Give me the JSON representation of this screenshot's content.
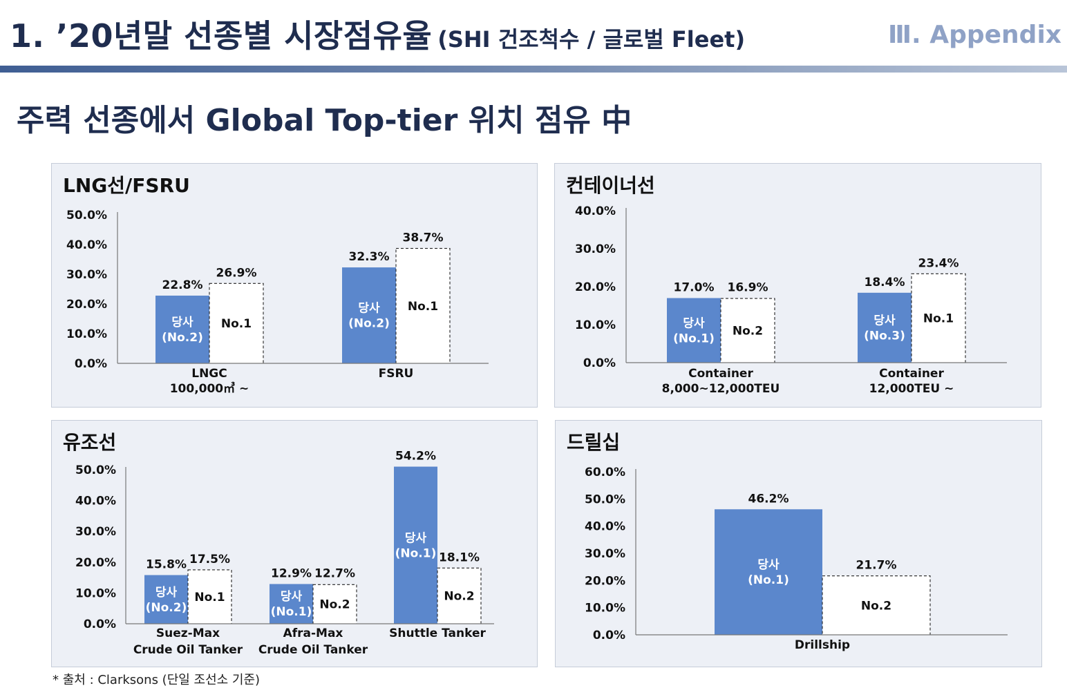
{
  "header": {
    "title": "1. ’20년말 선종별 시장점유율",
    "title_sub": "(SHI 건조척수 / 글로벌 Fleet)",
    "section": "Ⅲ. Appendix"
  },
  "subtitle": "주력 선종에서 Global Top-tier 위치 점유 中",
  "footnote": "* 출처 : Clarksons (단일 조선소 기준)",
  "colors": {
    "own_bar": "#5b87cc",
    "own_bar_text": "#ffffff",
    "navy": "#1f2d4f",
    "panel_bg": "#edf0f6"
  },
  "chart_data": [
    {
      "id": "lng",
      "type": "bar",
      "title": "LNG선/FSRU",
      "y_ticks": [
        "0.0%",
        "10.0%",
        "20.0%",
        "30.0%",
        "40.0%",
        "50.0%"
      ],
      "ylim": [
        0,
        50
      ],
      "categories": [
        [
          "LNGC",
          "100,000㎥ ~"
        ],
        [
          "FSRU"
        ]
      ],
      "series": [
        {
          "role": "own",
          "values": [
            22.8,
            32.3
          ],
          "value_labels": [
            "22.8%",
            "32.3%"
          ],
          "bar_labels": [
            [
              "당사",
              "(No.2)"
            ],
            [
              "당사",
              "(No.2)"
            ]
          ]
        },
        {
          "role": "top",
          "values": [
            26.9,
            38.7
          ],
          "value_labels": [
            "26.9%",
            "38.7%"
          ],
          "bar_labels": [
            [
              "No.1"
            ],
            [
              "No.1"
            ]
          ]
        }
      ]
    },
    {
      "id": "container",
      "type": "bar",
      "title": "컨테이너선",
      "y_ticks": [
        "0.0%",
        "10.0%",
        "20.0%",
        "30.0%",
        "40.0%"
      ],
      "ylim": [
        0,
        40
      ],
      "categories": [
        [
          "Container",
          "8,000~12,000TEU"
        ],
        [
          "Container",
          "12,000TEU ~"
        ]
      ],
      "series": [
        {
          "role": "own",
          "values": [
            17.0,
            18.4
          ],
          "value_labels": [
            "17.0%",
            "18.4%"
          ],
          "bar_labels": [
            [
              "당사",
              "(No.1)"
            ],
            [
              "당사",
              "(No.3)"
            ]
          ]
        },
        {
          "role": "top",
          "values": [
            16.9,
            23.4
          ],
          "value_labels": [
            "16.9%",
            "23.4%"
          ],
          "bar_labels": [
            [
              "No.2"
            ],
            [
              "No.1"
            ]
          ]
        }
      ]
    },
    {
      "id": "tanker",
      "type": "bar",
      "title": "유조선",
      "y_ticks": [
        "0.0%",
        "10.0%",
        "20.0%",
        "30.0%",
        "40.0%",
        "50.0%"
      ],
      "ylim": [
        0,
        50
      ],
      "categories": [
        [
          "Suez-Max",
          "Crude Oil Tanker"
        ],
        [
          "Afra-Max",
          "Crude Oil Tanker"
        ],
        [
          "Shuttle Tanker"
        ]
      ],
      "series": [
        {
          "role": "own",
          "values": [
            15.8,
            12.9,
            54.2
          ],
          "value_labels": [
            "15.8%",
            "12.9%",
            "54.2%"
          ],
          "bar_labels": [
            [
              "당사",
              "(No.2)"
            ],
            [
              "당사",
              "(No.1)"
            ],
            [
              "당사",
              "(No.1)"
            ]
          ]
        },
        {
          "role": "top",
          "values": [
            17.5,
            12.7,
            18.1
          ],
          "value_labels": [
            "17.5%",
            "12.7%",
            "18.1%"
          ],
          "bar_labels": [
            [
              "No.1"
            ],
            [
              "No.2"
            ],
            [
              "No.2"
            ]
          ]
        }
      ]
    },
    {
      "id": "drillship",
      "type": "bar",
      "title": "드릴십",
      "y_ticks": [
        "0.0%",
        "10.0%",
        "20.0%",
        "30.0%",
        "40.0%",
        "50.0%",
        "60.0%"
      ],
      "ylim": [
        0,
        60
      ],
      "categories": [
        [
          "Drillship"
        ]
      ],
      "series": [
        {
          "role": "own",
          "values": [
            46.2
          ],
          "value_labels": [
            "46.2%"
          ],
          "bar_labels": [
            [
              "당사",
              "(No.1)"
            ]
          ]
        },
        {
          "role": "top",
          "values": [
            21.7
          ],
          "value_labels": [
            "21.7%"
          ],
          "bar_labels": [
            [
              "No.2"
            ]
          ]
        }
      ]
    }
  ]
}
